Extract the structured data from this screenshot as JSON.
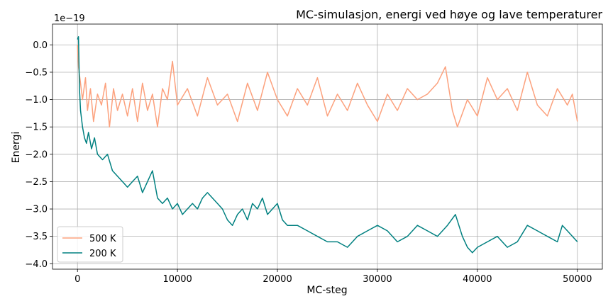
{
  "chart_data": {
    "type": "line",
    "title": "MC-simulasjon, energi ved høye og lave temperaturer",
    "xlabel": "MC-steg",
    "ylabel": "Energi",
    "offset_label": "1e−19",
    "xlim": [
      -2500,
      52500
    ],
    "ylim": [
      -4.1,
      0.38
    ],
    "x_ticks": [
      0,
      10000,
      20000,
      30000,
      40000,
      50000
    ],
    "x_tick_labels": [
      "0",
      "10000",
      "20000",
      "30000",
      "40000",
      "50000"
    ],
    "y_ticks": [
      0.0,
      -0.5,
      -1.0,
      -1.5,
      -2.0,
      -2.5,
      -3.0,
      -3.5,
      -4.0
    ],
    "y_tick_labels": [
      "0.0",
      "−0.5",
      "−1.0",
      "−1.5",
      "−2.0",
      "−2.5",
      "−3.0",
      "−3.5",
      "−4.0"
    ],
    "grid": true,
    "legend_position": "lower-left",
    "series": [
      {
        "name": "500 K",
        "color": "#fca17d",
        "x": [
          0,
          100,
          300,
          500,
          800,
          1000,
          1300,
          1600,
          2000,
          2400,
          2800,
          3200,
          3600,
          4000,
          4500,
          5000,
          5500,
          6000,
          6500,
          7000,
          7500,
          8000,
          8500,
          9000,
          9500,
          10000,
          11000,
          12000,
          13000,
          14000,
          15000,
          16000,
          17000,
          18000,
          19000,
          20000,
          21000,
          22000,
          23000,
          24000,
          25000,
          26000,
          27000,
          28000,
          29000,
          30000,
          31000,
          32000,
          33000,
          34000,
          35000,
          36000,
          36800,
          37500,
          38000,
          39000,
          40000,
          41000,
          42000,
          43000,
          44000,
          45000,
          46000,
          47000,
          48000,
          49000,
          49500,
          50000
        ],
        "values": [
          0.0,
          -0.4,
          -0.7,
          -1.0,
          -0.6,
          -1.2,
          -0.8,
          -1.4,
          -0.9,
          -1.1,
          -0.7,
          -1.5,
          -0.8,
          -1.2,
          -0.9,
          -1.3,
          -0.8,
          -1.4,
          -0.7,
          -1.2,
          -0.9,
          -1.5,
          -0.8,
          -1.0,
          -0.3,
          -1.1,
          -0.8,
          -1.3,
          -0.6,
          -1.1,
          -0.9,
          -1.4,
          -0.7,
          -1.2,
          -0.5,
          -1.0,
          -1.3,
          -0.8,
          -1.1,
          -0.6,
          -1.3,
          -0.9,
          -1.2,
          -0.7,
          -1.1,
          -1.4,
          -0.9,
          -1.2,
          -0.8,
          -1.0,
          -0.9,
          -0.7,
          -0.4,
          -1.2,
          -1.5,
          -1.0,
          -1.3,
          -0.6,
          -1.0,
          -0.8,
          -1.2,
          -0.5,
          -1.1,
          -1.3,
          -0.8,
          -1.1,
          -0.9,
          -1.4
        ]
      },
      {
        "name": "200 K",
        "color": "#008080",
        "x": [
          0,
          100,
          200,
          300,
          500,
          700,
          900,
          1100,
          1400,
          1700,
          2000,
          2500,
          3000,
          3500,
          4000,
          4500,
          5000,
          5500,
          6000,
          6500,
          7000,
          7500,
          8000,
          8500,
          9000,
          9500,
          10000,
          10500,
          11000,
          11500,
          12000,
          12500,
          13000,
          13500,
          14000,
          14500,
          15000,
          15500,
          16000,
          16500,
          17000,
          17500,
          18000,
          18500,
          19000,
          19500,
          20000,
          20500,
          21000,
          22000,
          23000,
          24000,
          25000,
          26000,
          27000,
          28000,
          29000,
          30000,
          31000,
          32000,
          33000,
          34000,
          35000,
          36000,
          37000,
          37800,
          38500,
          39000,
          39500,
          40000,
          41000,
          42000,
          43000,
          44000,
          45000,
          46000,
          47000,
          48000,
          48500,
          49000,
          50000
        ],
        "values": [
          0.1,
          0.15,
          -0.8,
          -1.2,
          -1.5,
          -1.7,
          -1.8,
          -1.6,
          -1.9,
          -1.7,
          -2.0,
          -2.1,
          -2.0,
          -2.3,
          -2.4,
          -2.5,
          -2.6,
          -2.5,
          -2.4,
          -2.7,
          -2.5,
          -2.3,
          -2.8,
          -2.9,
          -2.8,
          -3.0,
          -2.9,
          -3.1,
          -3.0,
          -2.9,
          -3.0,
          -2.8,
          -2.7,
          -2.8,
          -2.9,
          -3.0,
          -3.2,
          -3.3,
          -3.1,
          -3.0,
          -3.2,
          -2.9,
          -3.0,
          -2.8,
          -3.1,
          -3.0,
          -2.9,
          -3.2,
          -3.3,
          -3.3,
          -3.4,
          -3.5,
          -3.6,
          -3.6,
          -3.7,
          -3.5,
          -3.4,
          -3.3,
          -3.4,
          -3.6,
          -3.5,
          -3.3,
          -3.4,
          -3.5,
          -3.3,
          -3.1,
          -3.5,
          -3.7,
          -3.8,
          -3.7,
          -3.6,
          -3.5,
          -3.7,
          -3.6,
          -3.3,
          -3.4,
          -3.5,
          -3.6,
          -3.3,
          -3.4,
          -3.6
        ]
      }
    ]
  }
}
